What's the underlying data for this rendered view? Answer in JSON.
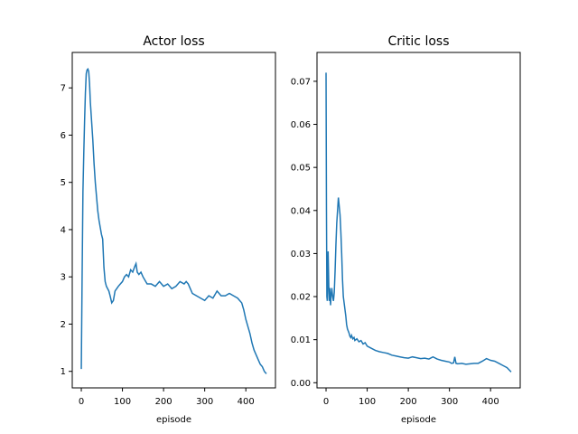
{
  "chart_data": [
    {
      "type": "line",
      "title": "Actor loss",
      "xlabel": "episode",
      "ylabel": "",
      "xlim": [
        -22,
        472
      ],
      "ylim": [
        0.65,
        7.75
      ],
      "xticks": [
        0,
        100,
        200,
        300,
        400
      ],
      "yticks": [
        1,
        2,
        3,
        4,
        5,
        6,
        7
      ],
      "grid": false,
      "color": "#1f77b4",
      "series": [
        {
          "x": [
            0,
            2,
            4,
            6,
            8,
            10,
            12,
            14,
            16,
            18,
            20,
            22,
            25,
            28,
            31,
            34,
            37,
            40,
            43,
            46,
            49,
            52,
            55,
            58,
            61,
            64,
            67,
            70,
            74,
            78,
            82,
            86,
            90,
            95,
            100,
            105,
            110,
            115,
            120,
            125,
            130,
            133,
            136,
            140,
            145,
            150,
            160,
            170,
            180,
            190,
            200,
            210,
            220,
            230,
            240,
            250,
            255,
            260,
            270,
            280,
            290,
            300,
            310,
            320,
            330,
            340,
            350,
            360,
            370,
            380,
            385,
            390,
            395,
            400,
            405,
            410,
            415,
            420,
            425,
            430,
            435,
            440,
            445,
            450
          ],
          "y": [
            1.05,
            3.0,
            4.8,
            5.6,
            6.3,
            6.9,
            7.3,
            7.38,
            7.4,
            7.35,
            7.1,
            6.7,
            6.3,
            5.9,
            5.4,
            5.0,
            4.7,
            4.4,
            4.2,
            4.05,
            3.9,
            3.8,
            3.2,
            2.9,
            2.8,
            2.75,
            2.7,
            2.6,
            2.45,
            2.5,
            2.7,
            2.75,
            2.8,
            2.85,
            2.9,
            3.0,
            3.05,
            3.0,
            3.15,
            3.1,
            3.22,
            3.28,
            3.1,
            3.05,
            3.1,
            3.0,
            2.85,
            2.85,
            2.8,
            2.9,
            2.8,
            2.85,
            2.75,
            2.8,
            2.9,
            2.85,
            2.9,
            2.85,
            2.65,
            2.6,
            2.55,
            2.5,
            2.6,
            2.55,
            2.7,
            2.6,
            2.6,
            2.65,
            2.6,
            2.55,
            2.5,
            2.45,
            2.3,
            2.1,
            1.95,
            1.8,
            1.6,
            1.45,
            1.35,
            1.25,
            1.15,
            1.1,
            1.0,
            0.95
          ]
        }
      ]
    },
    {
      "type": "line",
      "title": "Critic loss",
      "xlabel": "episode",
      "ylabel": "",
      "xlim": [
        -22,
        472
      ],
      "ylim": [
        -0.0012,
        0.0767
      ],
      "xticks": [
        0,
        100,
        200,
        300,
        400
      ],
      "yticks": [
        0.0,
        0.01,
        0.02,
        0.03,
        0.04,
        0.05,
        0.06,
        0.07
      ],
      "ytick_labels": [
        "0.00",
        "0.01",
        "0.02",
        "0.03",
        "0.04",
        "0.05",
        "0.06",
        "0.07"
      ],
      "grid": false,
      "color": "#1f77b4",
      "series": [
        {
          "x": [
            0,
            1,
            2,
            3,
            4,
            5,
            6,
            7,
            8,
            9,
            10,
            11,
            12,
            14,
            16,
            18,
            20,
            22,
            24,
            26,
            28,
            30,
            32,
            34,
            36,
            38,
            40,
            42,
            44,
            46,
            48,
            50,
            52,
            54,
            56,
            58,
            60,
            62,
            65,
            68,
            70,
            75,
            80,
            85,
            90,
            95,
            100,
            110,
            120,
            130,
            140,
            150,
            160,
            170,
            180,
            190,
            200,
            210,
            220,
            230,
            240,
            250,
            260,
            270,
            280,
            290,
            300,
            305,
            310,
            313,
            316,
            320,
            330,
            340,
            350,
            360,
            370,
            380,
            390,
            400,
            410,
            420,
            430,
            440,
            445,
            450
          ],
          "y": [
            0.072,
            0.04,
            0.02,
            0.019,
            0.025,
            0.0305,
            0.026,
            0.021,
            0.019,
            0.022,
            0.02,
            0.018,
            0.02,
            0.022,
            0.02,
            0.019,
            0.021,
            0.026,
            0.032,
            0.037,
            0.04,
            0.043,
            0.041,
            0.039,
            0.035,
            0.03,
            0.024,
            0.02,
            0.0185,
            0.017,
            0.0155,
            0.0135,
            0.0125,
            0.012,
            0.0115,
            0.0108,
            0.0105,
            0.011,
            0.0102,
            0.0105,
            0.0098,
            0.0102,
            0.0095,
            0.0098,
            0.009,
            0.0093,
            0.0085,
            0.008,
            0.0075,
            0.0072,
            0.007,
            0.0068,
            0.0064,
            0.0062,
            0.006,
            0.0058,
            0.0057,
            0.006,
            0.0058,
            0.0056,
            0.0057,
            0.0055,
            0.006,
            0.0055,
            0.0052,
            0.005,
            0.0048,
            0.0045,
            0.0046,
            0.006,
            0.0045,
            0.0044,
            0.0045,
            0.0043,
            0.0044,
            0.0045,
            0.0045,
            0.005,
            0.0056,
            0.0052,
            0.005,
            0.0045,
            0.004,
            0.0035,
            0.003,
            0.0025
          ]
        }
      ]
    }
  ]
}
